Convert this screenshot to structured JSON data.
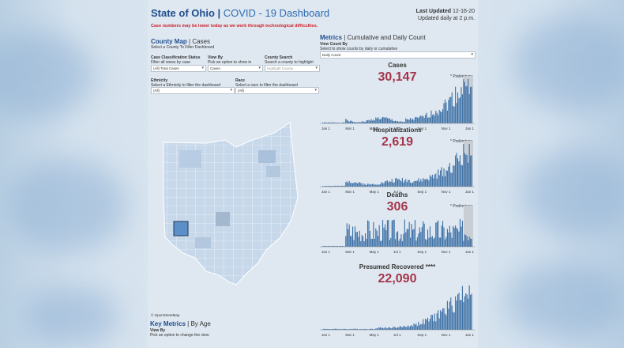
{
  "header": {
    "title_main": "State of Ohio",
    "title_sep": " | ",
    "title_sub": "COVID - 19 Dashboard",
    "last_updated_label": "Last Updated",
    "last_updated_date": "12-16-20",
    "update_freq": "Updated daily at 2 p.m.",
    "warning": "Case numbers may be lower today as we work through technological difficulties."
  },
  "map": {
    "heading_main": "County Map",
    "heading_sub": "Cases",
    "instruction": "Select a County To Filter Dashboard",
    "filters": {
      "case_class": {
        "label": "Case Classification Status",
        "help": "Filter all views by case classificati...",
        "value": "(All) Total Cases"
      },
      "view_by": {
        "label": "View By",
        "help": "Pick an option to show in map",
        "value": "Cases"
      },
      "county_search": {
        "label": "County Search",
        "help": "Search a county to highlight",
        "placeholder": "Highlight County"
      },
      "ethnicity": {
        "label": "Ethnicity",
        "help": "Select a Ethnicity to filter the dashboard",
        "value": "(All)"
      },
      "race": {
        "label": "Race",
        "help": "Select a race to filter the dashboard",
        "value": "(All)"
      }
    },
    "attribution": "© OpenStreetMap"
  },
  "key_metrics": {
    "heading_main": "Key Metrics",
    "heading_sub": "By Age",
    "view_by_label": "View By",
    "view_by_help": "Pick an option to change the view"
  },
  "metrics": {
    "heading_main": "Metrics",
    "heading_sub": "Cumulative and Daily Count",
    "count_by_label": "View Count By",
    "count_by_help": "Select to show counts by daily or cumulative",
    "count_by_value": "Daily Count",
    "prelim_label": "* Preliminary",
    "x_ticks": [
      "Jan 1",
      "Mar 1",
      "May 1",
      "Jul 1",
      "Sep 1",
      "Nov 1",
      "Jan 1"
    ],
    "panels": [
      {
        "title": "Cases",
        "value": "30,147",
        "preliminary": true
      },
      {
        "title": "Hospitalizations",
        "value": "2,619",
        "preliminary": true
      },
      {
        "title": "Deaths",
        "value": "306",
        "preliminary": true
      },
      {
        "title": "Presumed Recovered",
        "title_suffix": "****",
        "value": "22,090",
        "preliminary": false
      }
    ]
  },
  "colors": {
    "title": "#1f4e8c",
    "value": "#a6344a",
    "bar": "#3a6ea5",
    "warning": "#d0202a",
    "selected_county": "#5b8fc7"
  }
}
